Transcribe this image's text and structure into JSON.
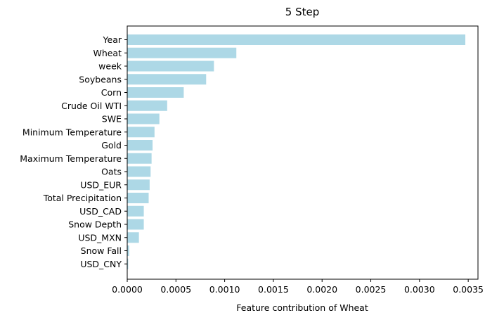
{
  "chart_data": {
    "type": "bar",
    "orientation": "horizontal",
    "title": "5 Step",
    "xlabel": "Feature contribution of Wheat",
    "ylabel": "",
    "categories": [
      "Year",
      "Wheat",
      "week",
      "Soybeans",
      "Corn",
      "Crude Oil WTI",
      "SWE",
      "Minimum Temperature",
      "Gold",
      "Maximum Temperature",
      "Oats",
      "USD_EUR",
      "Total Precipitation",
      "USD_CAD",
      "Snow Depth",
      "USD_MXN",
      "Snow Fall",
      "USD_CNY"
    ],
    "values": [
      0.00347,
      0.00112,
      0.00089,
      0.00081,
      0.00058,
      0.00041,
      0.00033,
      0.00028,
      0.00026,
      0.00025,
      0.00024,
      0.00023,
      0.00022,
      0.00017,
      0.00017,
      0.00012,
      2e-05,
      1e-05
    ],
    "xlim": [
      0,
      0.0036
    ],
    "xticks": [
      "0.0000",
      "0.0005",
      "0.0010",
      "0.0015",
      "0.0020",
      "0.0025",
      "0.0030",
      "0.0035"
    ],
    "xtick_values": [
      0,
      0.0005,
      0.001,
      0.0015,
      0.002,
      0.0025,
      0.003,
      0.0035
    ],
    "grid": false,
    "legend": "none",
    "bar_color": "#add8e6",
    "axis_color": "#000000"
  }
}
